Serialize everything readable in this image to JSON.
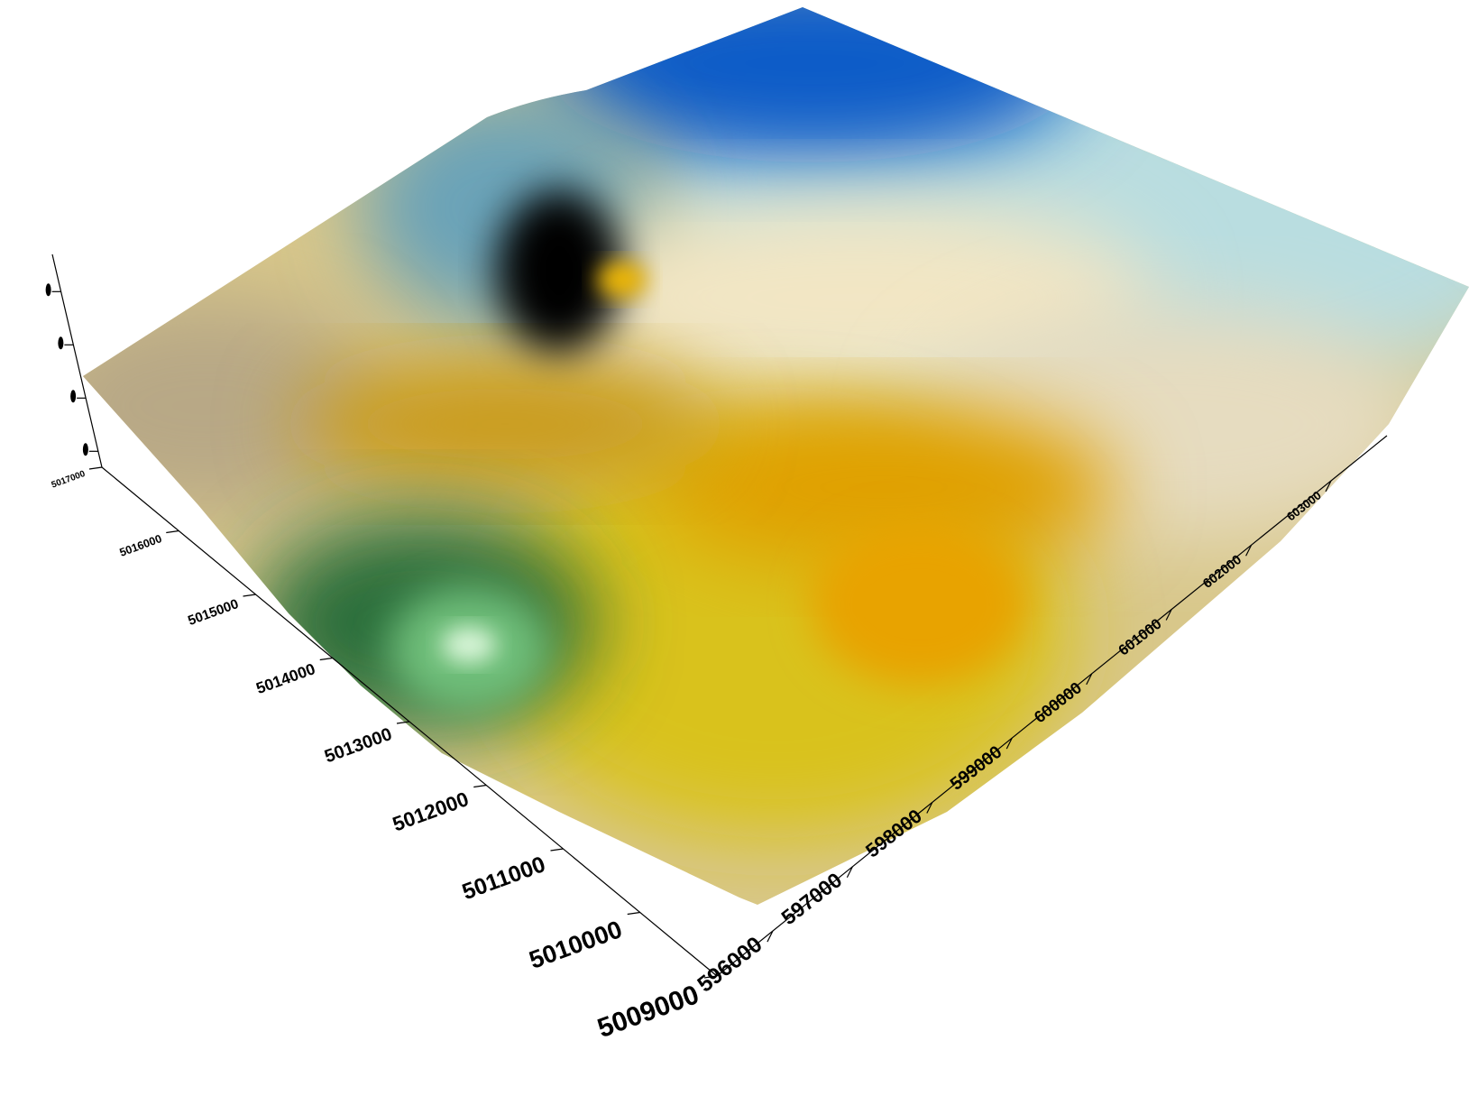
{
  "chart_data": {
    "type": "surface",
    "title": "",
    "xlabel": "",
    "ylabel": "",
    "zlabel": "",
    "grid": false,
    "legend": "none",
    "x_axis": {
      "ticks": [
        "596000",
        "597000",
        "598000",
        "599000",
        "600000",
        "601000",
        "602000",
        "603000"
      ],
      "range": [
        595300,
        603700
      ]
    },
    "y_axis": {
      "ticks": [
        "5009000",
        "5010000",
        "5011000",
        "5012000",
        "5013000",
        "5014000",
        "5015000",
        "5016000",
        "5017000"
      ],
      "range": [
        5009000,
        5017000
      ]
    },
    "z_axis": {
      "ticks": [
        "",
        "",
        "",
        ""
      ]
    },
    "color_scale": {
      "colors": [
        "#2a6e3a",
        "#6fbf7a",
        "#d9c21c",
        "#e0a000",
        "#f2e6c4",
        "#b9dde0",
        "#0c5cc8",
        "#000000"
      ]
    }
  }
}
